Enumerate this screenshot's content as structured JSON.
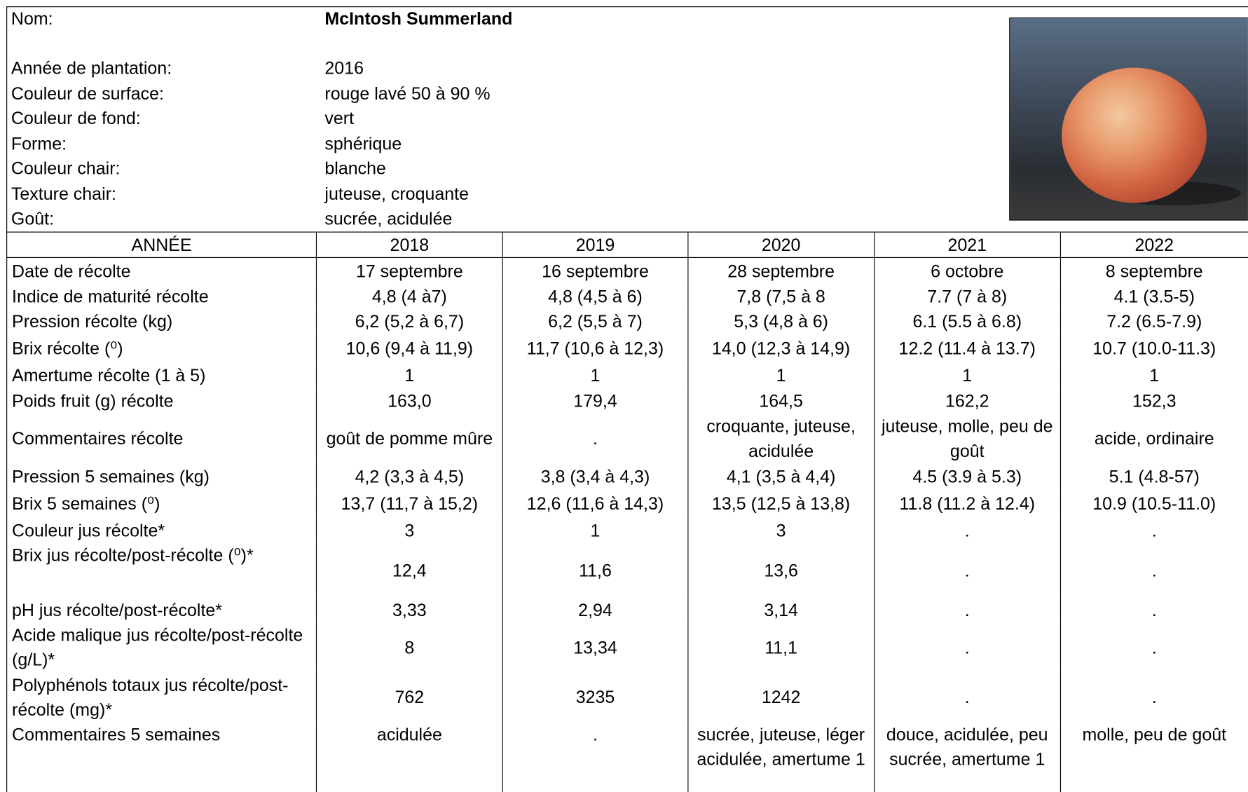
{
  "header": {
    "fields": [
      {
        "label": "Nom:",
        "value": "McIntosh Summerland"
      },
      {
        "label": "Année de plantation:",
        "value": "2016"
      },
      {
        "label": "Couleur de surface:",
        "value": "rouge lavé 50 à 90 %"
      },
      {
        "label": "Couleur de fond:",
        "value": "vert"
      },
      {
        "label": "Forme:",
        "value": "sphérique"
      },
      {
        "label": "Couleur chair:",
        "value": "blanche"
      },
      {
        "label": "Texture chair:",
        "value": "juteuse, croquante"
      },
      {
        "label": "Goût:",
        "value": "sucrée, acidulée"
      }
    ]
  },
  "table": {
    "columns": [
      "ANNÉE",
      "2018",
      "2019",
      "2020",
      "2021",
      "2022"
    ],
    "rows": [
      [
        "Date de récolte",
        "17 septembre",
        "16 septembre",
        "28 septembre",
        "6 octobre",
        "8 septembre"
      ],
      [
        "Indice de maturité récolte",
        "4,8 (4 à7)",
        "4,8 (4,5 à 6)",
        "7,8 (7,5 à 8",
        "7.7 (7 à 8)",
        "4.1 (3.5-5)"
      ],
      [
        "Pression récolte (kg)",
        "6,2 (5,2 à 6,7)",
        "6,2 (5,5 à 7)",
        "5,3 (4,8 à 6)",
        "6.1 (5.5 à 6.8)",
        "7.2 (6.5-7.9)"
      ],
      [
        "Brix récolte (⁰)",
        "10,6 (9,4 à 11,9)",
        "11,7 (10,6 à 12,3)",
        "14,0 (12,3 à 14,9)",
        "12.2 (11.4 à 13.7)",
        "10.7 (10.0-11.3)"
      ],
      [
        "Amertume récolte  (1 à 5)",
        "1",
        "1",
        "1",
        "1",
        "1"
      ],
      [
        "Poids fruit (g) récolte",
        "163,0",
        "179,4",
        "164,5",
        "162,2",
        "152,3"
      ],
      [
        "Commentaires récolte",
        "goût de pomme mûre",
        ".",
        "croquante, juteuse, acidulée",
        "juteuse, molle, peu de goût",
        "acide, ordinaire"
      ],
      [
        "Pression 5 semaines (kg)",
        "4,2 (3,3 à 4,5)",
        "3,8 (3,4 à 4,3)",
        "4,1 (3,5 à 4,4)",
        "4.5 (3.9 à 5.3)",
        "5.1 (4.8-57)"
      ],
      [
        "Brix 5 semaines (⁰)",
        "13,7 (11,7 à 15,2)",
        "12,6 (11,6 à 14,3)",
        "13,5 (12,5 à 13,8)",
        "11.8 (11.2 à 12.4)",
        "10.9 (10.5-11.0)"
      ],
      [
        "Couleur jus récolte*",
        "3",
        "1",
        "3",
        ".",
        "."
      ],
      [
        "Brix jus récolte/post-récolte (⁰)*",
        "12,4",
        "11,6",
        "13,6",
        ".",
        "."
      ],
      [
        "pH jus récolte/post-récolte*",
        "3,33",
        "2,94",
        "3,14",
        ".",
        "."
      ],
      [
        "Acide malique jus récolte/post-récolte (g/L)*",
        "8",
        "13,34",
        "11,1",
        ".",
        "."
      ],
      [
        "Polyphénols totaux jus récolte/post-récolte (mg)*",
        "762",
        "3235",
        "1242",
        ".",
        "."
      ],
      [
        "Commentaires 5 semaines",
        "acidulée",
        ".",
        "sucrée, juteuse, léger acidulée, amertume 1",
        "douce, acidulée, peu sucrée, amertume 1",
        "molle, peu de goût"
      ]
    ]
  }
}
